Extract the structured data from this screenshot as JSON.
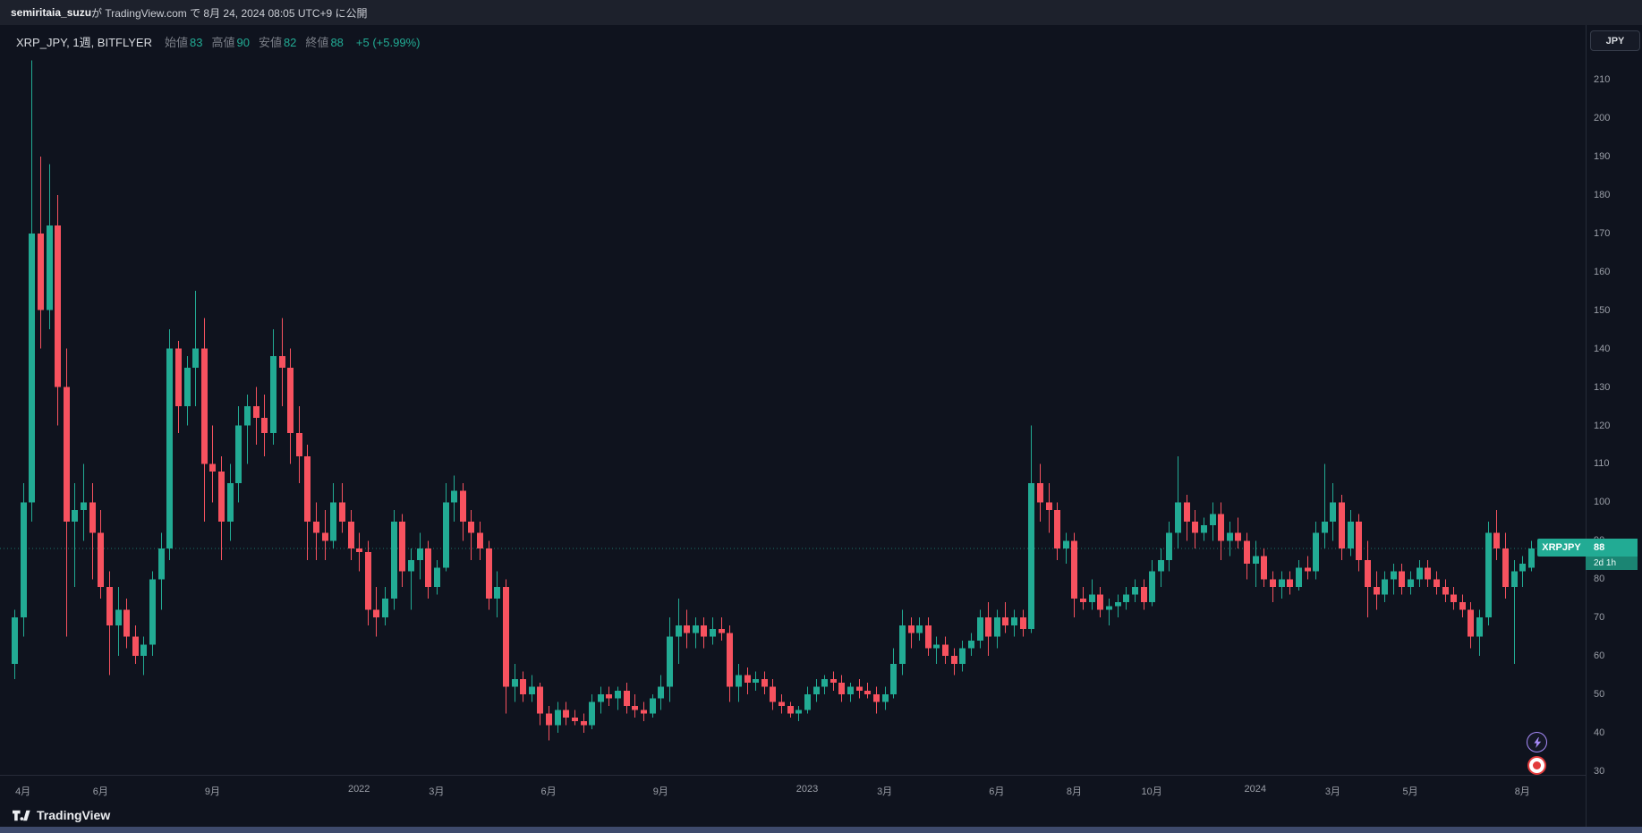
{
  "publish_bar": {
    "username": "semiritaia_suzu",
    "rest": " が TradingView.com で 8月 24, 2024 08:05 UTC+9 に公開"
  },
  "legend": {
    "symbol_title": "XRP_JPY, 1週, BITFLYER",
    "ohlc": [
      {
        "label": "始値",
        "value": "83"
      },
      {
        "label": "高値",
        "value": "90"
      },
      {
        "label": "安値",
        "value": "82"
      },
      {
        "label": "終値",
        "value": "88"
      }
    ],
    "change": "+5 (+5.99%)"
  },
  "price_axis": {
    "currency_button": "JPY",
    "ticks": [
      210,
      200,
      190,
      180,
      170,
      160,
      150,
      140,
      130,
      120,
      110,
      100,
      90,
      80,
      70,
      60,
      50,
      40,
      30
    ],
    "last_price_label": {
      "symbol": "XRPJPY",
      "price": "88",
      "price_value": 88,
      "countdown": "2d 1h"
    }
  },
  "time_axis": {
    "ticks": [
      {
        "label": "4月",
        "index": 1
      },
      {
        "label": "6月",
        "index": 10
      },
      {
        "label": "9月",
        "index": 23
      },
      {
        "label": "2022",
        "index": 40
      },
      {
        "label": "3月",
        "index": 49
      },
      {
        "label": "6月",
        "index": 62
      },
      {
        "label": "9月",
        "index": 75
      },
      {
        "label": "2023",
        "index": 92
      },
      {
        "label": "3月",
        "index": 101
      },
      {
        "label": "6月",
        "index": 114
      },
      {
        "label": "8月",
        "index": 123
      },
      {
        "label": "10月",
        "index": 132
      },
      {
        "label": "2024",
        "index": 144
      },
      {
        "label": "3月",
        "index": 153
      },
      {
        "label": "5月",
        "index": 162
      },
      {
        "label": "8月",
        "index": 175
      }
    ]
  },
  "footer": {
    "logo_text": "TradingView"
  },
  "colors": {
    "up": "#22ab94",
    "down": "#f7525f",
    "background": "#0f131e",
    "topbar_bg": "#1d212c",
    "axis_text": "#9b9fa8",
    "legend_text": "#d6d9de",
    "muted_text": "#7a7e87",
    "label_bg": "#22ab94",
    "footer_strip": "#3e4a6c",
    "fab_lightning": "#a78bfa",
    "fab_record": "#e23b3b"
  },
  "chart_data": {
    "type": "candlestick",
    "title": "XRP_JPY, 1週, BITFLYER",
    "symbol": "XRP_JPY",
    "interval": "1週",
    "exchange": "BITFLYER",
    "currency": "JPY",
    "grid": false,
    "legend_position": "top-left",
    "yaxis": {
      "min": 30,
      "max": 210,
      "tick_step": 10,
      "unit": "JPY"
    },
    "xaxis": {
      "start": "2021-04",
      "end": "2024-08",
      "interval": "weekly"
    },
    "current_bar": {
      "open": 83,
      "high": 90,
      "low": 82,
      "close": 88,
      "change": "+5",
      "change_pct": "+5.99%"
    },
    "price_line": {
      "value": 88,
      "style": "dotted"
    },
    "candle_format": [
      "open",
      "high",
      "low",
      "close"
    ],
    "candles": [
      [
        58,
        72,
        54,
        70
      ],
      [
        70,
        105,
        65,
        100
      ],
      [
        100,
        215,
        95,
        170
      ],
      [
        170,
        190,
        140,
        150
      ],
      [
        150,
        188,
        145,
        172
      ],
      [
        172,
        180,
        120,
        130
      ],
      [
        130,
        140,
        65,
        95
      ],
      [
        95,
        105,
        78,
        98
      ],
      [
        98,
        110,
        90,
        100
      ],
      [
        100,
        105,
        80,
        92
      ],
      [
        92,
        98,
        75,
        78
      ],
      [
        78,
        82,
        55,
        68
      ],
      [
        68,
        78,
        60,
        72
      ],
      [
        72,
        75,
        62,
        65
      ],
      [
        65,
        68,
        58,
        60
      ],
      [
        60,
        65,
        55,
        63
      ],
      [
        63,
        82,
        60,
        80
      ],
      [
        80,
        92,
        72,
        88
      ],
      [
        88,
        145,
        85,
        140
      ],
      [
        140,
        142,
        118,
        125
      ],
      [
        125,
        138,
        120,
        135
      ],
      [
        135,
        155,
        125,
        140
      ],
      [
        140,
        148,
        95,
        110
      ],
      [
        110,
        120,
        100,
        108
      ],
      [
        108,
        112,
        85,
        95
      ],
      [
        95,
        110,
        90,
        105
      ],
      [
        105,
        125,
        100,
        120
      ],
      [
        120,
        128,
        110,
        125
      ],
      [
        125,
        130,
        115,
        122
      ],
      [
        122,
        128,
        112,
        118
      ],
      [
        118,
        145,
        115,
        138
      ],
      [
        138,
        148,
        125,
        135
      ],
      [
        135,
        140,
        110,
        118
      ],
      [
        118,
        125,
        105,
        112
      ],
      [
        112,
        115,
        85,
        95
      ],
      [
        95,
        100,
        85,
        92
      ],
      [
        92,
        98,
        85,
        90
      ],
      [
        90,
        105,
        88,
        100
      ],
      [
        100,
        105,
        92,
        95
      ],
      [
        95,
        98,
        85,
        88
      ],
      [
        88,
        92,
        82,
        87
      ],
      [
        87,
        90,
        68,
        72
      ],
      [
        72,
        78,
        65,
        70
      ],
      [
        70,
        78,
        68,
        75
      ],
      [
        75,
        98,
        72,
        95
      ],
      [
        95,
        97,
        78,
        82
      ],
      [
        82,
        88,
        72,
        85
      ],
      [
        85,
        92,
        80,
        88
      ],
      [
        88,
        90,
        75,
        78
      ],
      [
        78,
        85,
        76,
        83
      ],
      [
        83,
        105,
        82,
        100
      ],
      [
        100,
        107,
        95,
        103
      ],
      [
        103,
        105,
        90,
        95
      ],
      [
        95,
        98,
        85,
        92
      ],
      [
        92,
        95,
        85,
        88
      ],
      [
        88,
        90,
        72,
        75
      ],
      [
        75,
        82,
        70,
        78
      ],
      [
        78,
        80,
        45,
        52
      ],
      [
        52,
        58,
        48,
        54
      ],
      [
        54,
        56,
        48,
        50
      ],
      [
        50,
        55,
        48,
        52
      ],
      [
        52,
        53,
        42,
        45
      ],
      [
        45,
        47,
        38,
        42
      ],
      [
        42,
        48,
        40,
        46
      ],
      [
        46,
        48,
        42,
        44
      ],
      [
        44,
        46,
        42,
        43
      ],
      [
        43,
        45,
        40,
        42
      ],
      [
        42,
        50,
        41,
        48
      ],
      [
        48,
        52,
        45,
        50
      ],
      [
        50,
        52,
        47,
        49
      ],
      [
        49,
        52,
        46,
        51
      ],
      [
        51,
        53,
        45,
        47
      ],
      [
        47,
        50,
        44,
        46
      ],
      [
        46,
        48,
        43,
        45
      ],
      [
        45,
        50,
        44,
        49
      ],
      [
        49,
        55,
        46,
        52
      ],
      [
        52,
        70,
        48,
        65
      ],
      [
        65,
        75,
        58,
        68
      ],
      [
        68,
        72,
        62,
        66
      ],
      [
        66,
        70,
        62,
        68
      ],
      [
        68,
        70,
        62,
        65
      ],
      [
        65,
        70,
        63,
        67
      ],
      [
        67,
        70,
        64,
        66
      ],
      [
        66,
        68,
        48,
        52
      ],
      [
        52,
        58,
        48,
        55
      ],
      [
        55,
        57,
        50,
        53
      ],
      [
        53,
        56,
        51,
        54
      ],
      [
        54,
        56,
        50,
        52
      ],
      [
        52,
        54,
        46,
        48
      ],
      [
        48,
        50,
        45,
        47
      ],
      [
        47,
        48,
        44,
        45
      ],
      [
        45,
        47,
        43,
        46
      ],
      [
        46,
        52,
        45,
        50
      ],
      [
        50,
        54,
        48,
        52
      ],
      [
        52,
        55,
        50,
        54
      ],
      [
        54,
        56,
        51,
        53
      ],
      [
        53,
        55,
        48,
        50
      ],
      [
        50,
        53,
        48,
        52
      ],
      [
        52,
        54,
        49,
        51
      ],
      [
        51,
        53,
        49,
        50
      ],
      [
        50,
        52,
        45,
        48
      ],
      [
        48,
        52,
        46,
        50
      ],
      [
        50,
        62,
        49,
        58
      ],
      [
        58,
        72,
        55,
        68
      ],
      [
        68,
        70,
        62,
        66
      ],
      [
        66,
        70,
        64,
        68
      ],
      [
        68,
        70,
        60,
        62
      ],
      [
        62,
        65,
        58,
        63
      ],
      [
        63,
        65,
        58,
        60
      ],
      [
        60,
        62,
        55,
        58
      ],
      [
        58,
        64,
        56,
        62
      ],
      [
        62,
        66,
        60,
        64
      ],
      [
        64,
        72,
        62,
        70
      ],
      [
        70,
        74,
        60,
        65
      ],
      [
        65,
        72,
        62,
        70
      ],
      [
        70,
        74,
        66,
        68
      ],
      [
        68,
        72,
        65,
        70
      ],
      [
        70,
        72,
        65,
        67
      ],
      [
        67,
        120,
        66,
        105
      ],
      [
        105,
        110,
        95,
        100
      ],
      [
        100,
        105,
        92,
        98
      ],
      [
        98,
        100,
        85,
        88
      ],
      [
        88,
        92,
        84,
        90
      ],
      [
        90,
        92,
        70,
        75
      ],
      [
        75,
        78,
        72,
        74
      ],
      [
        74,
        80,
        72,
        76
      ],
      [
        76,
        78,
        70,
        72
      ],
      [
        72,
        75,
        68,
        73
      ],
      [
        73,
        76,
        70,
        74
      ],
      [
        74,
        78,
        72,
        76
      ],
      [
        76,
        80,
        74,
        78
      ],
      [
        78,
        80,
        72,
        74
      ],
      [
        74,
        85,
        73,
        82
      ],
      [
        82,
        88,
        78,
        85
      ],
      [
        85,
        95,
        82,
        92
      ],
      [
        92,
        112,
        88,
        100
      ],
      [
        100,
        102,
        90,
        95
      ],
      [
        95,
        98,
        88,
        92
      ],
      [
        92,
        96,
        90,
        94
      ],
      [
        94,
        100,
        90,
        97
      ],
      [
        97,
        100,
        85,
        90
      ],
      [
        90,
        95,
        86,
        92
      ],
      [
        92,
        96,
        88,
        90
      ],
      [
        90,
        92,
        80,
        84
      ],
      [
        84,
        90,
        78,
        86
      ],
      [
        86,
        88,
        78,
        80
      ],
      [
        80,
        82,
        74,
        78
      ],
      [
        78,
        82,
        75,
        80
      ],
      [
        80,
        82,
        76,
        78
      ],
      [
        78,
        85,
        77,
        83
      ],
      [
        83,
        86,
        80,
        82
      ],
      [
        82,
        95,
        80,
        92
      ],
      [
        92,
        110,
        88,
        95
      ],
      [
        95,
        105,
        90,
        100
      ],
      [
        100,
        102,
        85,
        88
      ],
      [
        88,
        98,
        86,
        95
      ],
      [
        95,
        97,
        82,
        85
      ],
      [
        85,
        90,
        70,
        78
      ],
      [
        78,
        82,
        72,
        76
      ],
      [
        76,
        82,
        74,
        80
      ],
      [
        80,
        84,
        76,
        82
      ],
      [
        82,
        84,
        76,
        78
      ],
      [
        78,
        82,
        76,
        80
      ],
      [
        80,
        85,
        78,
        83
      ],
      [
        83,
        85,
        78,
        80
      ],
      [
        80,
        82,
        76,
        78
      ],
      [
        78,
        80,
        74,
        76
      ],
      [
        76,
        78,
        72,
        74
      ],
      [
        74,
        76,
        70,
        72
      ],
      [
        72,
        74,
        62,
        65
      ],
      [
        65,
        72,
        60,
        70
      ],
      [
        70,
        95,
        68,
        92
      ],
      [
        92,
        98,
        85,
        88
      ],
      [
        88,
        92,
        75,
        78
      ],
      [
        78,
        85,
        58,
        82
      ],
      [
        82,
        86,
        78,
        84
      ],
      [
        83,
        90,
        82,
        88
      ]
    ]
  }
}
